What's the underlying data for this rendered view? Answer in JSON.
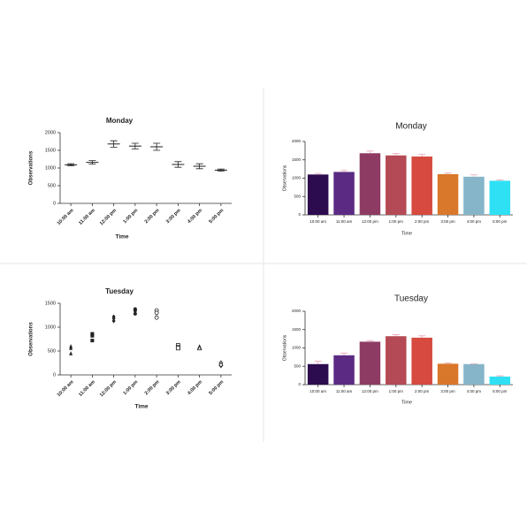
{
  "chart_data": [
    {
      "type": "errorbar",
      "title": "Monday",
      "x_label": "Time",
      "y_label": "Observations",
      "categories": [
        "10:00 am",
        "11:00 am",
        "12:00 pm",
        "1:00 pm",
        "2:00 pm",
        "3:00 pm",
        "4:00 pm",
        "5:00 pm"
      ],
      "values": [
        1090,
        1160,
        1680,
        1620,
        1600,
        1100,
        1050,
        940
      ],
      "errors": [
        30,
        50,
        90,
        80,
        100,
        80,
        70,
        30
      ],
      "color": "#222222",
      "ylim": [
        0,
        2000
      ],
      "yticks": [
        0,
        500,
        1000,
        1500,
        2000
      ]
    },
    {
      "type": "bar",
      "title": "Monday",
      "x_label": "Time",
      "y_label": "Observations",
      "categories": [
        "10:00 am",
        "11:00 am",
        "12:00 pm",
        "1:00 pm",
        "2:00 pm",
        "3:00 pm",
        "4:00 pm",
        "5:00 pm"
      ],
      "values": [
        1100,
        1170,
        1680,
        1620,
        1590,
        1110,
        1040,
        930
      ],
      "errors": [
        30,
        40,
        60,
        50,
        60,
        30,
        50,
        20
      ],
      "colors": [
        "#2d0b4f",
        "#5b2b84",
        "#8e3b64",
        "#b44a55",
        "#d64a3f",
        "#d9782b",
        "#86b5c9",
        "#2fe0f5"
      ],
      "ylim": [
        0,
        2000
      ],
      "yticks": [
        0,
        500,
        1000,
        1500,
        2000
      ]
    },
    {
      "type": "strip",
      "title": "Tuesday",
      "x_label": "Time",
      "y_label": "Observations",
      "categories": [
        "10:00 am",
        "11:00 am",
        "12:00 pm",
        "1:00 pm",
        "2:00 pm",
        "3:00 pm",
        "4:00 pm",
        "5:00 pm"
      ],
      "values": [
        [
          600,
          560,
          450
        ],
        [
          860,
          820,
          720
        ],
        [
          1220,
          1180,
          1130
        ],
        [
          1380,
          1350,
          1280
        ],
        [
          1350,
          1300,
          1200
        ],
        [
          620,
          580,
          560
        ],
        [
          580,
          570,
          560
        ],
        [
          250,
          200,
          210
        ]
      ],
      "markers": [
        "triangle",
        "square",
        "diamond",
        "circle",
        "circle-open",
        "square-open",
        "triangle-open",
        "diamond-open"
      ],
      "color": "#222222",
      "ylim": [
        0,
        1500
      ],
      "yticks": [
        0,
        500,
        1000,
        1500
      ]
    },
    {
      "type": "bar",
      "title": "Tuesday",
      "x_label": "Time",
      "y_label": "Observations",
      "categories": [
        "10:00 am",
        "11:00 am",
        "12:00 pm",
        "1:00 pm",
        "2:00 pm",
        "3:00 pm",
        "4:00 pm",
        "5:00 pm"
      ],
      "values": [
        560,
        800,
        1170,
        1320,
        1280,
        570,
        560,
        220
      ],
      "errors": [
        80,
        60,
        30,
        40,
        50,
        20,
        10,
        20
      ],
      "colors": [
        "#2d0b4f",
        "#5b2b84",
        "#8e3b64",
        "#b44a55",
        "#d64a3f",
        "#d9782b",
        "#86b5c9",
        "#2fe0f5"
      ],
      "ylim": [
        0,
        2000
      ],
      "yticks": [
        0,
        500,
        1000,
        1500,
        2000
      ]
    }
  ]
}
